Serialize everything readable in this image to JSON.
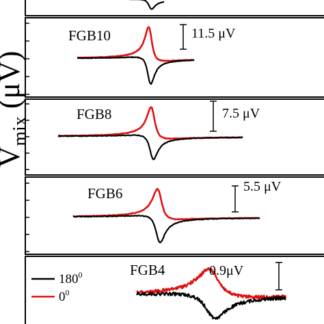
{
  "figure": {
    "ylabel_main": "V",
    "ylabel_sub": "mix",
    "ylabel_unit": " (μV)"
  },
  "legend": [
    {
      "label": "180",
      "sup": "0",
      "color": "#000000"
    },
    {
      "label": "0",
      "sup": "0",
      "color": "#e01010"
    }
  ],
  "chart_data": [
    {
      "type": "line",
      "panel": "top (partially cropped)",
      "label": "",
      "scale_label": "",
      "x_range": [
        0,
        1
      ],
      "series": [
        {
          "name": "180°",
          "color": "#000000",
          "center": 0.465,
          "width": 0.012,
          "amp": -1.0,
          "offset": 0.0
        }
      ]
    },
    {
      "type": "line",
      "label": "FGB10",
      "scale_label": "11.5 μV",
      "scale_value_uV": 11.5,
      "x_range": [
        0,
        1
      ],
      "series": [
        {
          "name": "0°",
          "color": "#e01010",
          "center": 0.462,
          "width": 0.013,
          "amp": 1.0,
          "offset": 0.0
        },
        {
          "name": "180°",
          "color": "#000000",
          "center": 0.462,
          "width": 0.013,
          "amp": -1.0,
          "offset": 0.0
        }
      ]
    },
    {
      "type": "line",
      "label": "FGB8",
      "scale_label": "7.5 μV",
      "scale_value_uV": 7.5,
      "x_range": [
        0,
        1
      ],
      "series": [
        {
          "name": "0°",
          "color": "#e01010",
          "center": 0.47,
          "width": 0.015,
          "amp": 1.0,
          "offset": 0.0
        },
        {
          "name": "180°",
          "color": "#000000",
          "center": 0.47,
          "width": 0.015,
          "amp": -1.0,
          "offset": 0.0
        }
      ]
    },
    {
      "type": "line",
      "label": "FGB6",
      "scale_label": "5.5 μV",
      "scale_value_uV": 5.5,
      "x_range": [
        0,
        1
      ],
      "series": [
        {
          "name": "0°",
          "color": "#e01010",
          "center": 0.49,
          "width": 0.017,
          "amp": 1.0,
          "offset": 0.0
        },
        {
          "name": "180°",
          "color": "#000000",
          "center": 0.49,
          "width": 0.017,
          "amp": -1.0,
          "offset": 0.0
        }
      ]
    },
    {
      "type": "line",
      "label": "FGB4",
      "scale_label": "0.9μV",
      "scale_value_uV": 0.9,
      "x_range": [
        0,
        1
      ],
      "series": [
        {
          "name": "0°",
          "color": "#e01010",
          "center": 0.655,
          "width": 0.04,
          "amp": 1.0,
          "offset": 0.0
        },
        {
          "name": "180°",
          "color": "#000000",
          "center": 0.655,
          "width": 0.04,
          "amp": -1.0,
          "offset": 0.0
        }
      ]
    }
  ]
}
